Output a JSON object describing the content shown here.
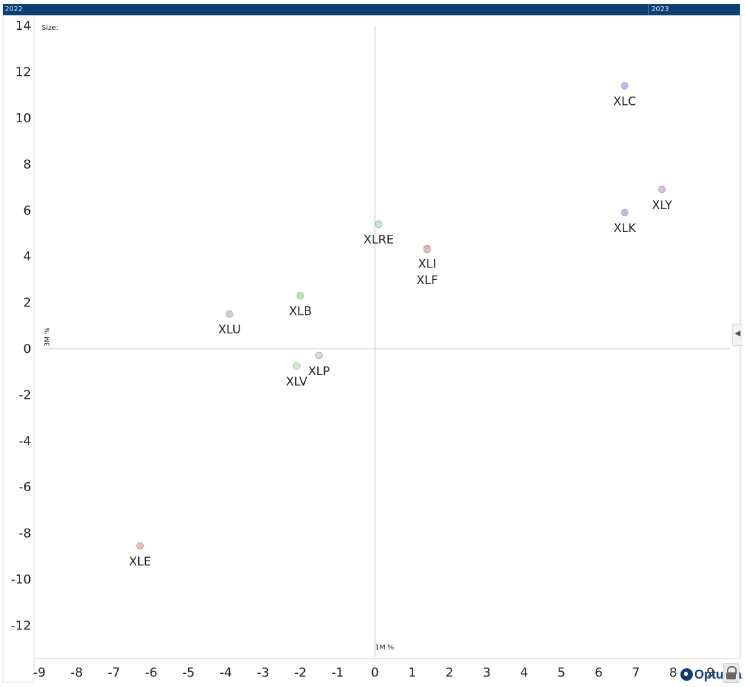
{
  "timeline": {
    "start_label": "2022",
    "end_label": "2023"
  },
  "brand": {
    "name": "Optuma"
  },
  "chart_data": {
    "type": "scatter",
    "size_label": "Size:",
    "xlabel": "1M %",
    "ylabel": "3M %",
    "xlim": [
      -9,
      9
    ],
    "ylim": [
      -12,
      14
    ],
    "x_ticks": [
      -9,
      -8,
      -7,
      -6,
      -5,
      -4,
      -3,
      -2,
      -1,
      0,
      1,
      2,
      3,
      4,
      5,
      6,
      7,
      8,
      9
    ],
    "y_ticks": [
      14,
      12,
      10,
      8,
      6,
      4,
      2,
      0,
      -2,
      -4,
      -6,
      -8,
      -10,
      -12
    ],
    "points": [
      {
        "label": "XLC",
        "x": 6.7,
        "y": 11.4,
        "color": "#b8b8f0"
      },
      {
        "label": "XLY",
        "x": 7.7,
        "y": 6.9,
        "color": "#e3b8ea"
      },
      {
        "label": "XLK",
        "x": 6.7,
        "y": 5.9,
        "color": "#c0bce4"
      },
      {
        "label": "XLRE",
        "x": 0.1,
        "y": 5.4,
        "color": "#b8e6e0"
      },
      {
        "label": "XLI",
        "x": 1.4,
        "y": 4.35,
        "color": "#e6b8b8"
      },
      {
        "label": "XLF",
        "x": 1.4,
        "y": 4.3,
        "color": "#e6b8b8"
      },
      {
        "label": "XLB",
        "x": -2.0,
        "y": 2.3,
        "color": "#bfe3b8"
      },
      {
        "label": "XLU",
        "x": -3.9,
        "y": 1.5,
        "color": "#c8d0c8"
      },
      {
        "label": "XLP",
        "x": -1.5,
        "y": -0.3,
        "color": "#d8d8d8"
      },
      {
        "label": "XLV",
        "x": -2.1,
        "y": -0.75,
        "color": "#c8f2c0"
      },
      {
        "label": "XLE",
        "x": -6.3,
        "y": -8.55,
        "color": "#f5b8b8"
      }
    ]
  }
}
